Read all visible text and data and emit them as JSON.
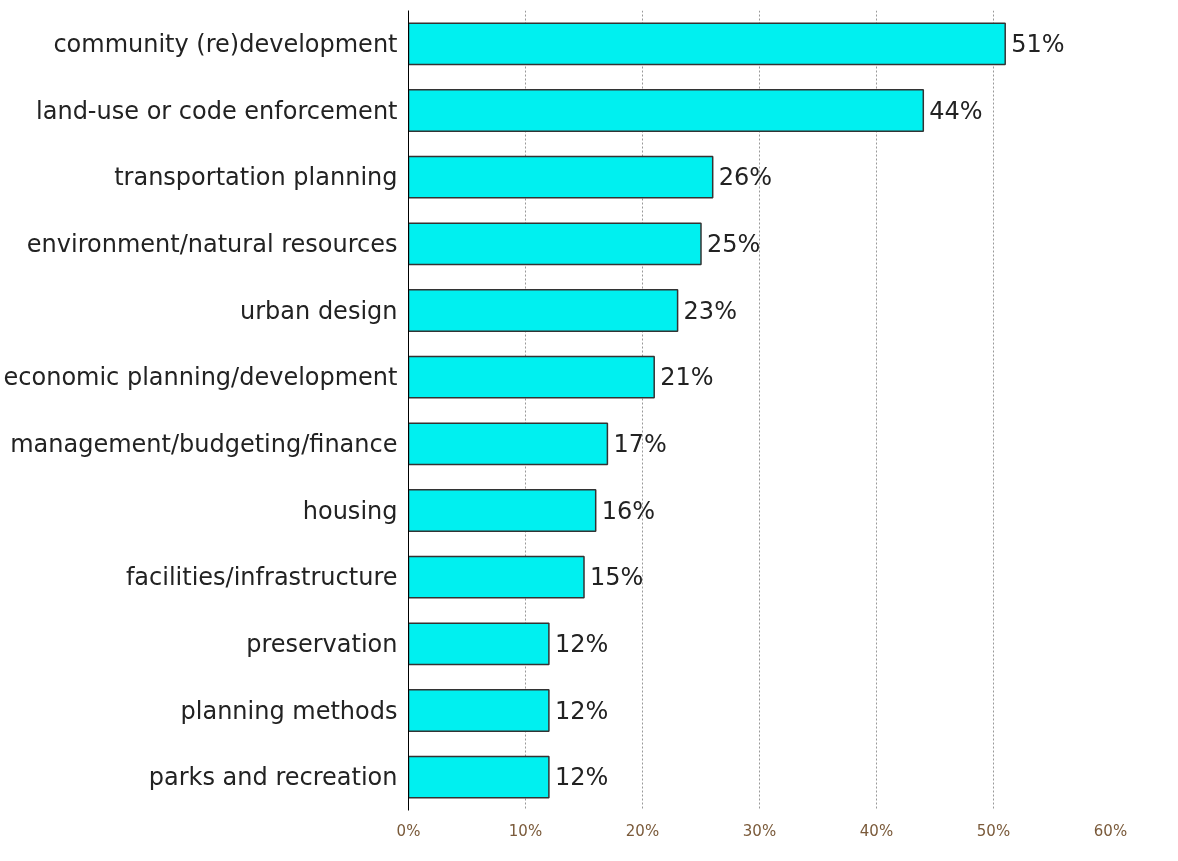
{
  "chart_data": {
    "type": "bar",
    "orientation": "horizontal",
    "categories": [
      "community (re)development",
      "land-use or code enforcement",
      "transportation planning",
      "environment/natural resources",
      "urban design",
      "economic planning/development",
      "management/budgeting/finance",
      "housing",
      "facilities/infrastructure",
      "preservation",
      "planning methods",
      "parks and recreation"
    ],
    "values": [
      51,
      44,
      26,
      25,
      23,
      21,
      17,
      16,
      15,
      12,
      12,
      12
    ],
    "value_labels": [
      "51%",
      "44%",
      "26%",
      "25%",
      "23%",
      "21%",
      "17%",
      "16%",
      "15%",
      "12%",
      "12%",
      "12%"
    ],
    "color": "#00f0f0",
    "xlim": [
      0,
      60
    ],
    "xticks": [
      {
        "value": 0,
        "label": "0%"
      },
      {
        "value": 10,
        "label": "10%"
      },
      {
        "value": 20,
        "label": "20%"
      },
      {
        "value": 30,
        "label": "30%"
      },
      {
        "value": 40,
        "label": "40%"
      },
      {
        "value": 50,
        "label": "50%"
      },
      {
        "value": 60,
        "label": "60%"
      }
    ],
    "grid": "x"
  }
}
